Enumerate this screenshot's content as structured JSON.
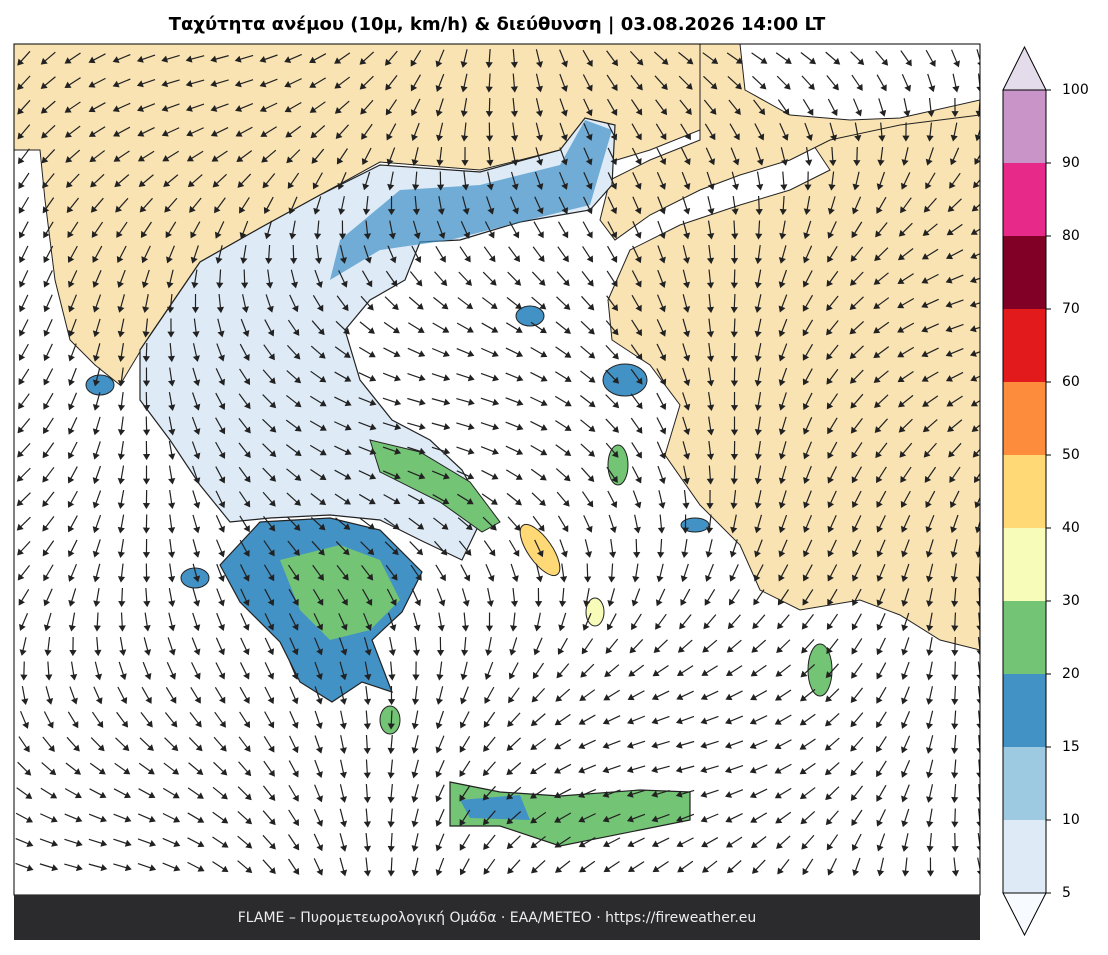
{
  "title": "Ταχύτητα ανέμου (10μ, km/h) & διεύθυνση  |  03.08.2026 14:00 LT",
  "footer": "FLAME – Πυρομετεωρολογική Ομάδα · ΕΑΑ/METEO · https://fireweather.eu",
  "colorbar": {
    "ticks": [
      5,
      10,
      15,
      20,
      30,
      40,
      50,
      60,
      70,
      80,
      90,
      100
    ],
    "colors": [
      "#deebf7",
      "#9ecae1",
      "#4292c6",
      "#74c476",
      "#f7fcb9",
      "#fed976",
      "#fd8d3c",
      "#e31a1c",
      "#800026",
      "#e7298a",
      "#c994c7"
    ],
    "under": "#f7fbff",
    "over": "#e4dcea"
  }
}
